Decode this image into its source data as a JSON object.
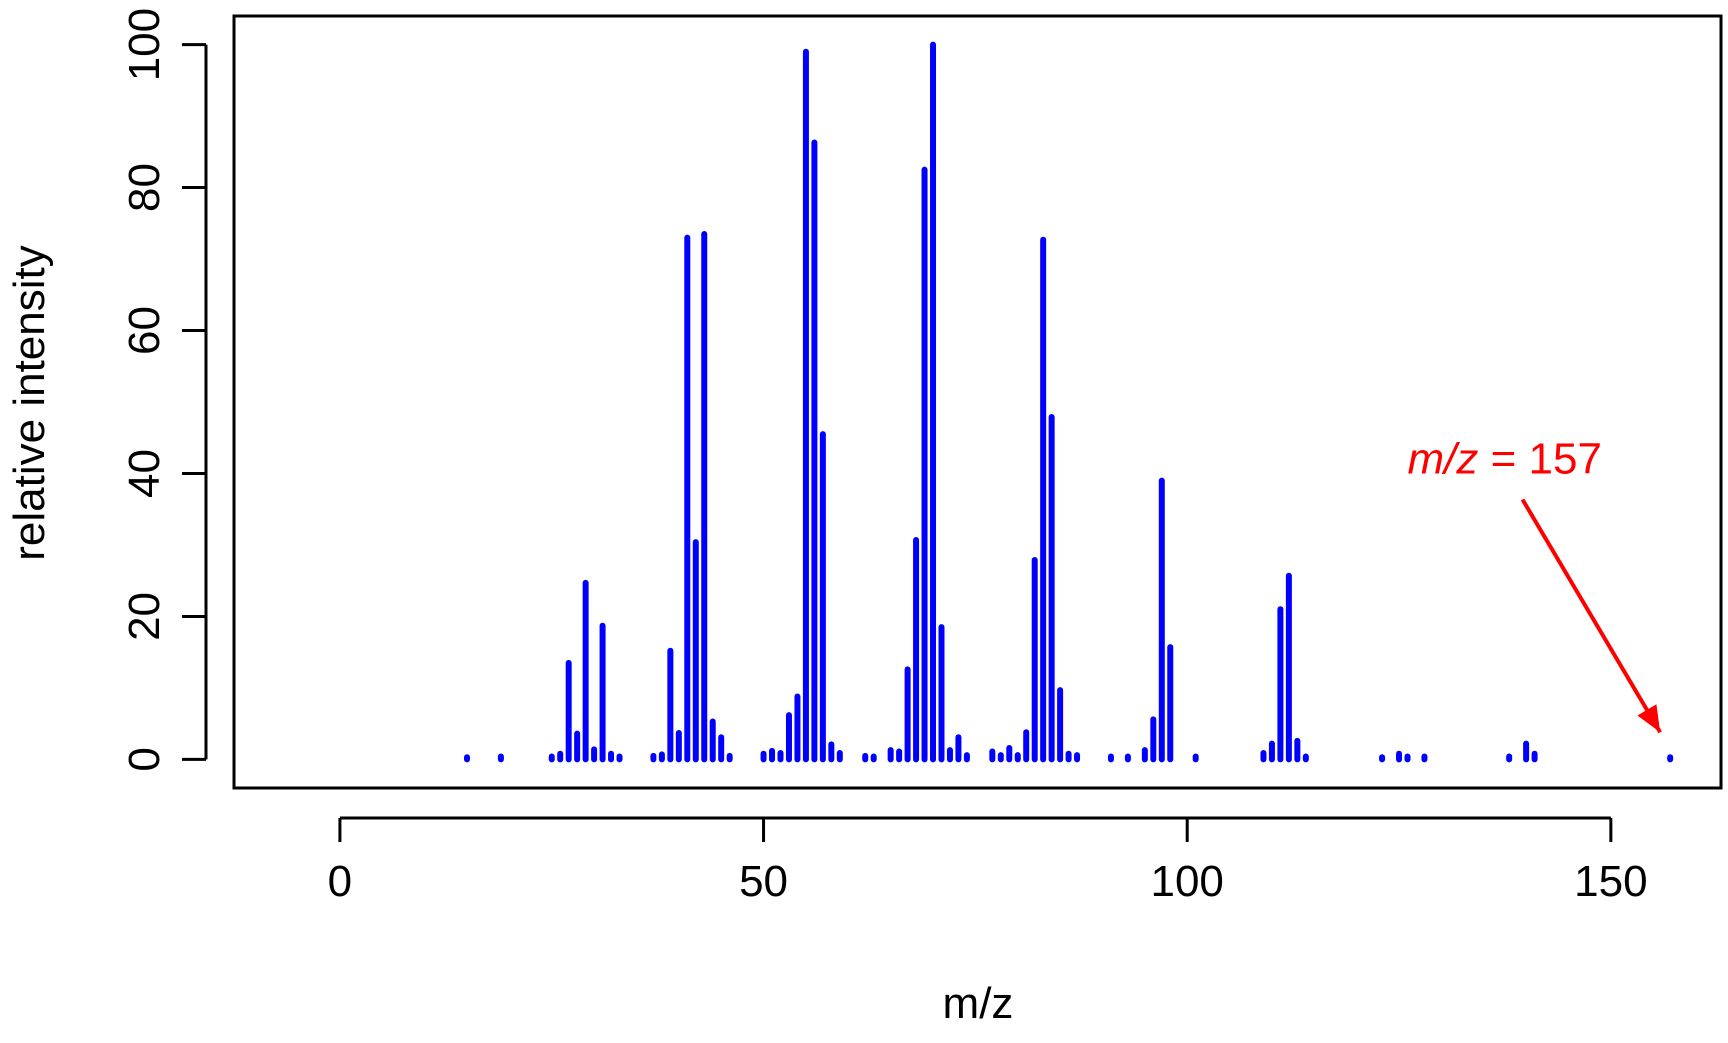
{
  "chart_data": {
    "type": "bar",
    "xlabel": "m/z",
    "ylabel": "relative intensity",
    "xlim": [
      -12.5,
      163
    ],
    "ylim": [
      -4,
      104
    ],
    "x_ticks": [
      "0",
      "50",
      "100",
      "150"
    ],
    "x_tick_values": [
      0,
      50,
      100,
      150
    ],
    "y_ticks": [
      "0",
      "20",
      "40",
      "60",
      "80",
      "100"
    ],
    "y_tick_values": [
      0,
      20,
      40,
      60,
      80,
      100
    ],
    "bar_color": "#0000ff",
    "series": [
      {
        "x": [
          15,
          19,
          25,
          26,
          27,
          28,
          29,
          30,
          31,
          32,
          33,
          37,
          38,
          39,
          40,
          41,
          42,
          43,
          44,
          45,
          46,
          50,
          51,
          52,
          53,
          54,
          55,
          56,
          57,
          58,
          59,
          62,
          63,
          65,
          66,
          67,
          68,
          69,
          70,
          71,
          72,
          73,
          74,
          77,
          78,
          79,
          80,
          81,
          82,
          83,
          84,
          85,
          86,
          87,
          91,
          93,
          95,
          96,
          97,
          98,
          101,
          109,
          110,
          111,
          112,
          113,
          114,
          123,
          125,
          126,
          128,
          138,
          140,
          141,
          157
        ],
        "values": [
          0.3,
          0.4,
          0.4,
          0.8,
          13.5,
          3.6,
          24.7,
          1.4,
          18.7,
          0.8,
          0.4,
          0.5,
          0.7,
          15.2,
          3.7,
          73.0,
          30.4,
          73.5,
          5.3,
          3.1,
          0.5,
          0.8,
          1.2,
          0.9,
          6.2,
          8.8,
          99.0,
          86.3,
          45.5,
          2.1,
          0.9,
          0.5,
          0.4,
          1.3,
          1.1,
          12.6,
          30.7,
          82.5,
          100.0,
          18.5,
          1.3,
          3.1,
          0.6,
          1.1,
          0.6,
          1.6,
          0.6,
          3.8,
          27.9,
          72.7,
          47.9,
          9.7,
          0.8,
          0.6,
          0.4,
          0.4,
          1.3,
          5.6,
          39.0,
          15.7,
          0.4,
          0.9,
          2.2,
          21.0,
          25.7,
          2.6,
          0.4,
          0.3,
          0.8,
          0.4,
          0.4,
          0.4,
          2.2,
          0.8,
          0.3
        ]
      }
    ],
    "annotations": [
      {
        "text_italic_1": "m/z",
        "text_rest": " = 157",
        "color": "#ff0000",
        "x": 126,
        "y": 40,
        "target_x": 157,
        "target_y": 0.3
      }
    ]
  }
}
